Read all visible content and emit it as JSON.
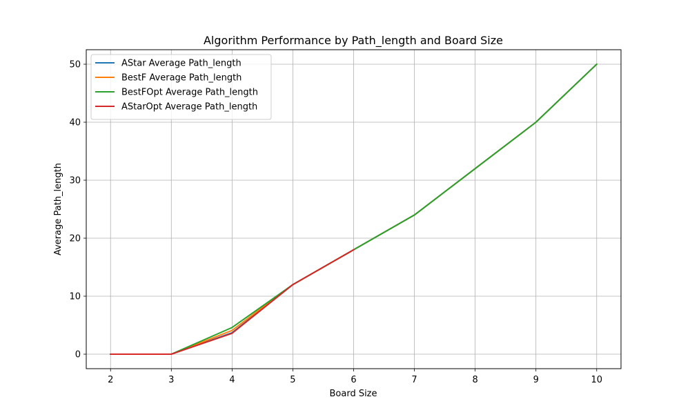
{
  "chart_data": {
    "type": "line",
    "title": "Algorithm Performance by Path_length and Board Size",
    "xlabel": "Board Size",
    "ylabel": "Average Path_length",
    "x": [
      2,
      3,
      4,
      5,
      6,
      7,
      8,
      9,
      10
    ],
    "xlim": [
      1.6,
      10.4
    ],
    "ylim": [
      -2.5,
      52.5
    ],
    "xticks": [
      2,
      3,
      4,
      5,
      6,
      7,
      8,
      9,
      10
    ],
    "yticks": [
      0,
      10,
      20,
      30,
      40,
      50
    ],
    "grid": true,
    "legend_position": "upper-left",
    "series": [
      {
        "name": "AStar Average Path_length",
        "color": "#1f77b4",
        "values": [
          0,
          0,
          3.7,
          12,
          18,
          24,
          32,
          40,
          50
        ]
      },
      {
        "name": "BestF Average Path_length",
        "color": "#ff7f0e",
        "values": [
          0,
          0,
          4.1,
          12,
          18,
          24,
          32,
          40,
          50
        ]
      },
      {
        "name": "BestFOpt Average Path_length",
        "color": "#2ca02c",
        "values": [
          0,
          0,
          4.6,
          12,
          18,
          24,
          32,
          40,
          50
        ]
      },
      {
        "name": "AStarOpt Average Path_length",
        "color": "#d62728",
        "values": [
          0,
          0,
          3.6,
          12,
          18,
          null,
          null,
          null,
          null
        ]
      }
    ]
  }
}
